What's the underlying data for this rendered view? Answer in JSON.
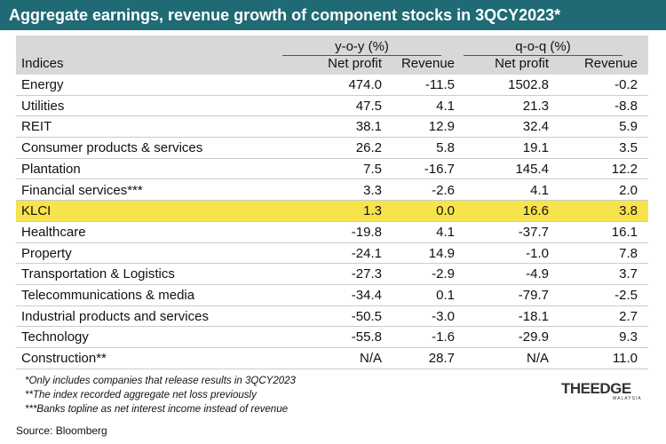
{
  "title": "Aggregate earnings, revenue growth of component stocks in 3QCY2023*",
  "header": {
    "groups": [
      "y-o-y (%)",
      "q-o-q (%)"
    ],
    "columns": [
      "Indices",
      "Net profit",
      "Revenue",
      "Net profit",
      "Revenue"
    ]
  },
  "table": {
    "rows": [
      [
        "Energy",
        "474.0",
        "-11.5",
        "1502.8",
        "-0.2"
      ],
      [
        "Utilities",
        "47.5",
        "4.1",
        "21.3",
        "-8.8"
      ],
      [
        "REIT",
        "38.1",
        "12.9",
        "32.4",
        "5.9"
      ],
      [
        "Consumer products & services",
        "26.2",
        "5.8",
        "19.1",
        "3.5"
      ],
      [
        "Plantation",
        "7.5",
        "-16.7",
        "145.4",
        "12.2"
      ],
      [
        "Financial services***",
        "3.3",
        "-2.6",
        "4.1",
        "2.0"
      ],
      [
        "KLCI",
        "1.3",
        "0.0",
        "16.6",
        "3.8"
      ],
      [
        "Healthcare",
        "-19.8",
        "4.1",
        "-37.7",
        "16.1"
      ],
      [
        "Property",
        "-24.1",
        "14.9",
        "-1.0",
        "7.8"
      ],
      [
        "Transportation & Logistics",
        "-27.3",
        "-2.9",
        "-4.9",
        "3.7"
      ],
      [
        "Telecommunications & media",
        "-34.4",
        "0.1",
        "-79.7",
        "-2.5"
      ],
      [
        "Industrial products and services",
        "-50.5",
        "-3.0",
        "-18.1",
        "2.7"
      ],
      [
        "Technology",
        "-55.8",
        "-1.6",
        "-29.9",
        "9.3"
      ],
      [
        "Construction**",
        "N/A",
        "28.7",
        "N/A",
        "11.0"
      ]
    ]
  },
  "footnotes": [
    "*Only includes companies that release results in 3QCY2023",
    "**The index recorded aggregate net loss previously",
    "***Banks topline as net interest income instead of revenue"
  ],
  "source": "Source: Bloomberg",
  "logo": {
    "main": "THEEDGE",
    "sub": "MALAYSIA"
  }
}
